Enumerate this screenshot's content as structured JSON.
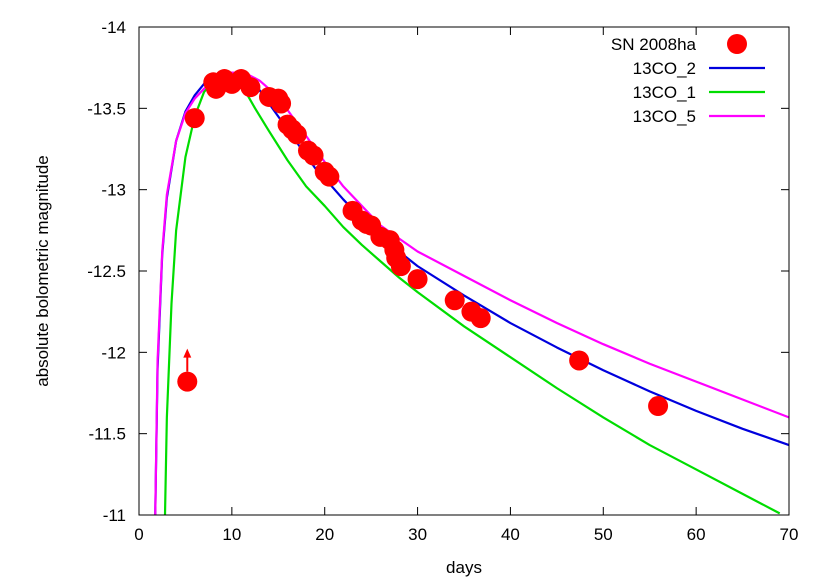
{
  "chart_data": {
    "type": "scatter",
    "xlabel": "days",
    "ylabel": "absolute bolometric magnitude",
    "xlim": [
      0,
      70
    ],
    "ylim": [
      -11,
      -14
    ],
    "y_inverted": true,
    "x_ticks": [
      0,
      10,
      20,
      30,
      40,
      50,
      60,
      70
    ],
    "y_ticks": [
      -14,
      -13.5,
      -13,
      -12.5,
      -12,
      -11.5,
      -11
    ],
    "grid": false,
    "legend_position": "top-right",
    "series": [
      {
        "name": "SN 2008ha",
        "kind": "points",
        "color": "#ff0000",
        "points": [
          [
            6.0,
            -13.44
          ],
          [
            8.0,
            -13.66
          ],
          [
            8.3,
            -13.62
          ],
          [
            9.2,
            -13.68
          ],
          [
            10.0,
            -13.65
          ],
          [
            11.0,
            -13.68
          ],
          [
            12.0,
            -13.63
          ],
          [
            14.0,
            -13.57
          ],
          [
            15.0,
            -13.56
          ],
          [
            15.3,
            -13.53
          ],
          [
            16.0,
            -13.4
          ],
          [
            16.5,
            -13.37
          ],
          [
            17.0,
            -13.34
          ],
          [
            18.2,
            -13.24
          ],
          [
            18.8,
            -13.21
          ],
          [
            20.0,
            -13.11
          ],
          [
            20.5,
            -13.08
          ],
          [
            23.0,
            -12.87
          ],
          [
            24.0,
            -12.81
          ],
          [
            24.5,
            -12.79
          ],
          [
            25.0,
            -12.78
          ],
          [
            26.0,
            -12.71
          ],
          [
            27.0,
            -12.69
          ],
          [
            27.5,
            -12.63
          ],
          [
            27.7,
            -12.58
          ],
          [
            28.2,
            -12.53
          ],
          [
            30.0,
            -12.45
          ],
          [
            34.0,
            -12.32
          ],
          [
            35.8,
            -12.25
          ],
          [
            36.8,
            -12.21
          ],
          [
            47.4,
            -11.95
          ],
          [
            55.9,
            -11.67
          ]
        ]
      },
      {
        "name": "",
        "kind": "lower-limit",
        "color": "#ff0000",
        "points": [
          [
            5.2,
            -11.82
          ]
        ]
      },
      {
        "name": "13CO_2",
        "kind": "line",
        "color": "#0000dd",
        "points": [
          [
            1.75,
            -11.0
          ],
          [
            2.0,
            -11.9
          ],
          [
            2.5,
            -12.6
          ],
          [
            3.0,
            -12.95
          ],
          [
            4.0,
            -13.3
          ],
          [
            5.0,
            -13.48
          ],
          [
            6.0,
            -13.58
          ],
          [
            7.0,
            -13.65
          ],
          [
            8.0,
            -13.69
          ],
          [
            9.0,
            -13.715
          ],
          [
            10.0,
            -13.72
          ],
          [
            11.0,
            -13.71
          ],
          [
            12.0,
            -13.67
          ],
          [
            13.0,
            -13.61
          ],
          [
            14.0,
            -13.53
          ],
          [
            15.0,
            -13.45
          ],
          [
            16.0,
            -13.37
          ],
          [
            17.0,
            -13.29
          ],
          [
            18.0,
            -13.21
          ],
          [
            19.0,
            -13.13
          ],
          [
            20.0,
            -13.07
          ],
          [
            22.0,
            -12.94
          ],
          [
            24.0,
            -12.82
          ],
          [
            26.0,
            -12.72
          ],
          [
            28.0,
            -12.62
          ],
          [
            30.0,
            -12.53
          ],
          [
            35.0,
            -12.35
          ],
          [
            40.0,
            -12.18
          ],
          [
            45.0,
            -12.03
          ],
          [
            50.0,
            -11.89
          ],
          [
            55.0,
            -11.76
          ],
          [
            60.0,
            -11.64
          ],
          [
            65.0,
            -11.53
          ],
          [
            70.0,
            -11.43
          ]
        ]
      },
      {
        "name": "13CO_1",
        "kind": "line",
        "color": "#00dd00",
        "points": [
          [
            2.8,
            -11.0
          ],
          [
            3.0,
            -11.6
          ],
          [
            3.5,
            -12.3
          ],
          [
            4.0,
            -12.75
          ],
          [
            5.0,
            -13.2
          ],
          [
            6.0,
            -13.45
          ],
          [
            7.0,
            -13.6
          ],
          [
            8.0,
            -13.67
          ],
          [
            9.0,
            -13.7
          ],
          [
            9.6,
            -13.7
          ],
          [
            10.5,
            -13.67
          ],
          [
            11.5,
            -13.6
          ],
          [
            12.5,
            -13.5
          ],
          [
            14.0,
            -13.36
          ],
          [
            15.0,
            -13.27
          ],
          [
            16.0,
            -13.18
          ],
          [
            17.0,
            -13.1
          ],
          [
            18.0,
            -13.02
          ],
          [
            20.0,
            -12.9
          ],
          [
            22.0,
            -12.77
          ],
          [
            24.0,
            -12.66
          ],
          [
            26.0,
            -12.56
          ],
          [
            28.0,
            -12.46
          ],
          [
            30.0,
            -12.37
          ],
          [
            35.0,
            -12.16
          ],
          [
            40.0,
            -11.97
          ],
          [
            45.0,
            -11.78
          ],
          [
            50.0,
            -11.6
          ],
          [
            55.0,
            -11.43
          ],
          [
            60.0,
            -11.28
          ],
          [
            65.0,
            -11.13
          ],
          [
            69.0,
            -11.01
          ]
        ]
      },
      {
        "name": "13CO_5",
        "kind": "line",
        "color": "#ff00ff",
        "points": [
          [
            1.75,
            -11.0
          ],
          [
            2.0,
            -11.95
          ],
          [
            2.5,
            -12.62
          ],
          [
            3.0,
            -12.97
          ],
          [
            4.0,
            -13.3
          ],
          [
            5.0,
            -13.47
          ],
          [
            6.0,
            -13.56
          ],
          [
            7.0,
            -13.62
          ],
          [
            8.0,
            -13.67
          ],
          [
            9.0,
            -13.7
          ],
          [
            10.0,
            -13.72
          ],
          [
            11.0,
            -13.72
          ],
          [
            12.0,
            -13.7
          ],
          [
            13.0,
            -13.67
          ],
          [
            14.0,
            -13.62
          ],
          [
            15.0,
            -13.56
          ],
          [
            16.0,
            -13.49
          ],
          [
            17.0,
            -13.41
          ],
          [
            18.0,
            -13.33
          ],
          [
            19.0,
            -13.25
          ],
          [
            20.0,
            -13.17
          ],
          [
            22.0,
            -13.02
          ],
          [
            24.0,
            -12.9
          ],
          [
            26.0,
            -12.78
          ],
          [
            28.0,
            -12.7
          ],
          [
            30.0,
            -12.62
          ],
          [
            35.0,
            -12.47
          ],
          [
            40.0,
            -12.32
          ],
          [
            45.0,
            -12.18
          ],
          [
            50.0,
            -12.05
          ],
          [
            55.0,
            -11.93
          ],
          [
            60.0,
            -11.82
          ],
          [
            65.0,
            -11.71
          ],
          [
            70.0,
            -11.6
          ]
        ]
      }
    ]
  }
}
